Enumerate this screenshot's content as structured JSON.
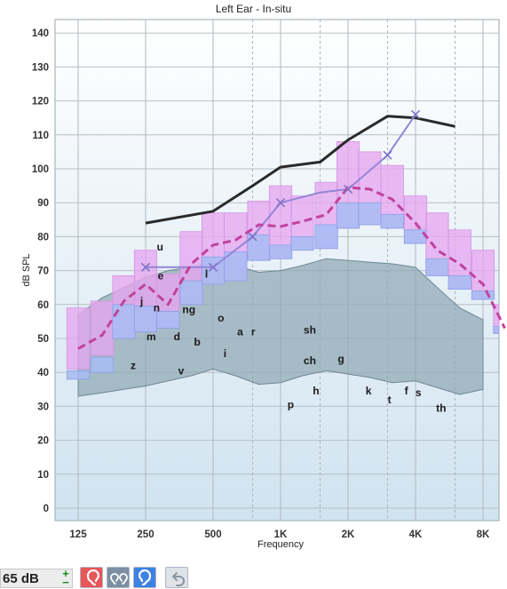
{
  "title": "Left Ear - In-situ",
  "toolbar": {
    "level": "65 dB",
    "increase_label": "+",
    "decrease_label": "−",
    "buttons": [
      {
        "name": "left-ear-button",
        "icon": "ear-icon",
        "bg": "#e8575a"
      },
      {
        "name": "both-ears-button",
        "icon": "both-ears-icon",
        "bg": "#7d8fa3"
      },
      {
        "name": "right-ear-button",
        "icon": "ear-outline-icon",
        "bg": "#3e82e3"
      },
      {
        "name": "undo-button",
        "icon": "undo-icon",
        "bg": "#dfe3e8"
      }
    ]
  },
  "chart_data": {
    "type": "area",
    "title": "Left Ear - In-situ",
    "xlabel": "Frequency",
    "ylabel": "dB SPL",
    "x_scale": "log",
    "xlim": [
      100,
      10000
    ],
    "ylim": [
      -4,
      144
    ],
    "x_ticks": [
      125,
      250,
      500,
      1000,
      2000,
      4000,
      8000
    ],
    "x_tick_labels": [
      "125",
      "250",
      "500",
      "1K",
      "2K",
      "4K",
      "8K"
    ],
    "y_ticks": [
      0,
      10,
      20,
      30,
      40,
      50,
      60,
      70,
      80,
      90,
      100,
      110,
      120,
      130,
      140
    ],
    "y_tick_labels": [
      "0",
      "10",
      "20",
      "30",
      "40",
      "50",
      "60",
      "70",
      "80",
      "90",
      "100",
      "110",
      "120",
      "130",
      "140"
    ],
    "grid": true,
    "colors": {
      "background_top": "#ffffff",
      "background_bottom": "#d0e3f0",
      "speech_banana": "#8fa7b4",
      "pink_band": "#e6a6f0",
      "blue_band": "#a9bcf3",
      "mpo_line": "#2a2a2a",
      "target_line": "#9385d6",
      "aided_line": "#c0429e"
    },
    "speech_banana": {
      "frequencies": [
        125,
        160,
        200,
        250,
        315,
        400,
        500,
        630,
        800,
        1000,
        1250,
        1600,
        2000,
        2500,
        3150,
        4000,
        5000,
        6300,
        8000
      ],
      "upper": [
        57,
        62,
        65,
        68,
        70,
        71,
        72.5,
        71.5,
        69.5,
        70,
        71.5,
        73.5,
        73,
        72.5,
        72,
        71,
        65,
        59,
        55.5
      ],
      "lower": [
        33,
        34,
        35,
        36,
        37.5,
        39,
        41,
        39,
        36.5,
        37,
        39,
        40.5,
        39.5,
        38.5,
        37,
        37.5,
        35.5,
        33.5,
        35
      ]
    },
    "bands": {
      "frequencies": [
        125,
        160,
        200,
        250,
        315,
        400,
        500,
        630,
        800,
        1000,
        1250,
        1600,
        2000,
        2500,
        3150,
        4000,
        5000,
        6300,
        8000,
        10000
      ],
      "pink_top": [
        59,
        61,
        68.5,
        76,
        69,
        81.5,
        87,
        87,
        90.5,
        95,
        92,
        96,
        108,
        105,
        101,
        92,
        87,
        82,
        76,
        60
      ],
      "pink_bottom": [
        41,
        45,
        50,
        52,
        53,
        60,
        66,
        67,
        73,
        73.5,
        76,
        76.5,
        82.5,
        83.5,
        82.5,
        78,
        68.5,
        64.5,
        61.5,
        51.5
      ],
      "blue_top": [
        40.5,
        44.5,
        60,
        59.5,
        58,
        67,
        74,
        75.5,
        80.5,
        77.5,
        80,
        83.5,
        90,
        90,
        86.5,
        82,
        73.5,
        68.5,
        64,
        53.5
      ],
      "blue_bottom": [
        38,
        40,
        50,
        52,
        53,
        60,
        66,
        67,
        73,
        73.5,
        76,
        76.5,
        82.5,
        83.5,
        82.5,
        78,
        68.5,
        64.5,
        61.5,
        51.5
      ]
    },
    "series": [
      {
        "name": "",
        "style": "solid-dark",
        "x": [
          250,
          500,
          750,
          1000,
          1500,
          2000,
          3000,
          4000,
          6000
        ],
        "y": [
          84,
          87.5,
          95,
          100.5,
          102,
          108.5,
          115.5,
          115,
          112.5
        ]
      },
      {
        "name": "",
        "style": "solid-purple-x",
        "x": [
          250,
          500,
          750,
          1000,
          1500,
          2000,
          3000,
          4000
        ],
        "y": [
          71,
          71,
          80,
          90,
          93,
          94,
          104,
          116
        ],
        "markers": [
          250,
          500,
          750,
          1000,
          2000,
          3000,
          4000
        ]
      },
      {
        "name": "",
        "style": "dashed-magenta",
        "x": [
          125,
          160,
          200,
          250,
          315,
          400,
          500,
          630,
          800,
          1000,
          1250,
          1600,
          2000,
          2500,
          3150,
          4000,
          5000,
          6300,
          8000,
          10000
        ],
        "y": [
          47,
          51,
          61,
          66,
          60,
          72,
          77.5,
          79,
          83.5,
          83,
          84.5,
          86.5,
          94.5,
          94,
          91,
          84,
          76,
          72,
          66,
          53
        ]
      }
    ],
    "annotations": [
      {
        "text": "u",
        "f": 290,
        "db": 77
      },
      {
        "text": "e",
        "f": 292,
        "db": 68.5
      },
      {
        "text": "l",
        "f": 467,
        "db": 69
      },
      {
        "text": "j",
        "f": 240,
        "db": 61
      },
      {
        "text": "n",
        "f": 280,
        "db": 59
      },
      {
        "text": "ng",
        "f": 390,
        "db": 58.5
      },
      {
        "text": "o",
        "f": 542,
        "db": 56
      },
      {
        "text": "m",
        "f": 265,
        "db": 50.5
      },
      {
        "text": "d",
        "f": 345,
        "db": 50.5
      },
      {
        "text": "b",
        "f": 425,
        "db": 49
      },
      {
        "text": "a",
        "f": 660,
        "db": 52
      },
      {
        "text": "r",
        "f": 755,
        "db": 52
      },
      {
        "text": "i",
        "f": 565,
        "db": 45.5
      },
      {
        "text": "sh",
        "f": 1350,
        "db": 52.5
      },
      {
        "text": "z",
        "f": 220,
        "db": 42
      },
      {
        "text": "v",
        "f": 360,
        "db": 40.5
      },
      {
        "text": "ch",
        "f": 1350,
        "db": 43.5
      },
      {
        "text": "g",
        "f": 1860,
        "db": 44
      },
      {
        "text": "h",
        "f": 1440,
        "db": 34.5
      },
      {
        "text": "p",
        "f": 1110,
        "db": 30.5
      },
      {
        "text": "k",
        "f": 2470,
        "db": 34.5
      },
      {
        "text": "f",
        "f": 3640,
        "db": 34.5
      },
      {
        "text": "s",
        "f": 4120,
        "db": 34
      },
      {
        "text": "t",
        "f": 3060,
        "db": 32
      },
      {
        "text": "th",
        "f": 5200,
        "db": 29.5
      }
    ]
  }
}
